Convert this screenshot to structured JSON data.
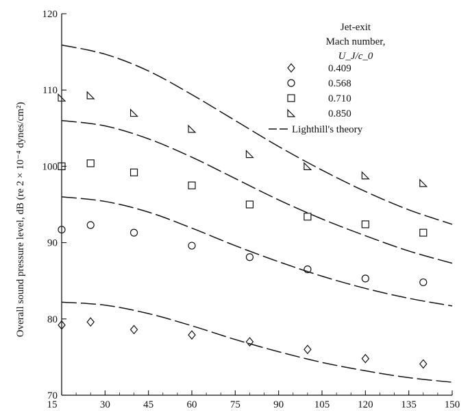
{
  "chart_data": {
    "type": "scatter",
    "title": "",
    "xlabel": "",
    "ylabel": "Overall sound pressure level, dB (re 2 × 10⁻⁴ dynes/cm²)",
    "xlim": [
      15,
      150
    ],
    "ylim": [
      70,
      120
    ],
    "x_ticks": [
      15,
      30,
      45,
      60,
      75,
      90,
      105,
      120,
      135,
      150
    ],
    "y_ticks": [
      70,
      80,
      90,
      100,
      110,
      120
    ],
    "grid": false,
    "legend": {
      "placement": "top-right",
      "heading": [
        "Jet-exit",
        "Mach number,",
        "U_J/c_0"
      ],
      "entries": [
        {
          "label": "0.409",
          "marker": "diamond"
        },
        {
          "label": "0.568",
          "marker": "circle"
        },
        {
          "label": "0.710",
          "marker": "square"
        },
        {
          "label": "0.850",
          "marker": "triangle"
        },
        {
          "label": "Lighthill's theory",
          "marker": "dashed-line"
        }
      ]
    },
    "series": [
      {
        "name": "0.409",
        "marker": "diamond",
        "x": [
          15,
          25,
          40,
          60,
          80,
          100,
          120,
          140
        ],
        "y": [
          79.2,
          79.6,
          78.6,
          77.9,
          77.0,
          76.0,
          74.8,
          74.1
        ]
      },
      {
        "name": "0.568",
        "marker": "circle",
        "x": [
          15,
          25,
          40,
          60,
          80,
          100,
          120,
          140
        ],
        "y": [
          91.7,
          92.3,
          91.3,
          89.6,
          88.1,
          86.5,
          85.3,
          84.8
        ]
      },
      {
        "name": "0.710",
        "marker": "square",
        "x": [
          15,
          25,
          40,
          60,
          80,
          100,
          120,
          140
        ],
        "y": [
          100.0,
          100.4,
          99.2,
          97.5,
          95.0,
          93.4,
          92.4,
          91.3
        ]
      },
      {
        "name": "0.850",
        "marker": "triangle",
        "x": [
          15,
          25,
          40,
          60,
          80,
          100,
          120,
          140
        ],
        "y": [
          109.0,
          109.3,
          107.0,
          104.9,
          101.6,
          100.0,
          98.8,
          97.8
        ]
      }
    ],
    "theory_curves": [
      {
        "name": "Lighthill's theory",
        "x": [
          15,
          30,
          45,
          60,
          75,
          90,
          105,
          120,
          135,
          150
        ],
        "y": [
          82.2,
          81.8,
          80.7,
          79.1,
          77.3,
          75.7,
          74.3,
          73.2,
          72.3,
          71.7
        ]
      },
      {
        "name": "Lighthill's theory",
        "x": [
          15,
          30,
          45,
          60,
          75,
          90,
          105,
          120,
          135,
          150
        ],
        "y": [
          96.0,
          95.4,
          94.0,
          91.9,
          89.6,
          87.5,
          85.6,
          84.0,
          82.7,
          81.7
        ]
      },
      {
        "name": "Lighthill's theory",
        "x": [
          15,
          30,
          45,
          60,
          75,
          90,
          105,
          120,
          135,
          150
        ],
        "y": [
          106.0,
          105.3,
          103.6,
          101.2,
          98.4,
          95.6,
          93.1,
          90.9,
          88.9,
          87.3
        ]
      },
      {
        "name": "Lighthill's theory",
        "x": [
          15,
          30,
          45,
          60,
          75,
          90,
          105,
          120,
          135,
          150
        ],
        "y": [
          115.9,
          114.7,
          112.5,
          109.4,
          106.0,
          102.6,
          99.5,
          96.7,
          94.3,
          92.4
        ]
      }
    ]
  }
}
